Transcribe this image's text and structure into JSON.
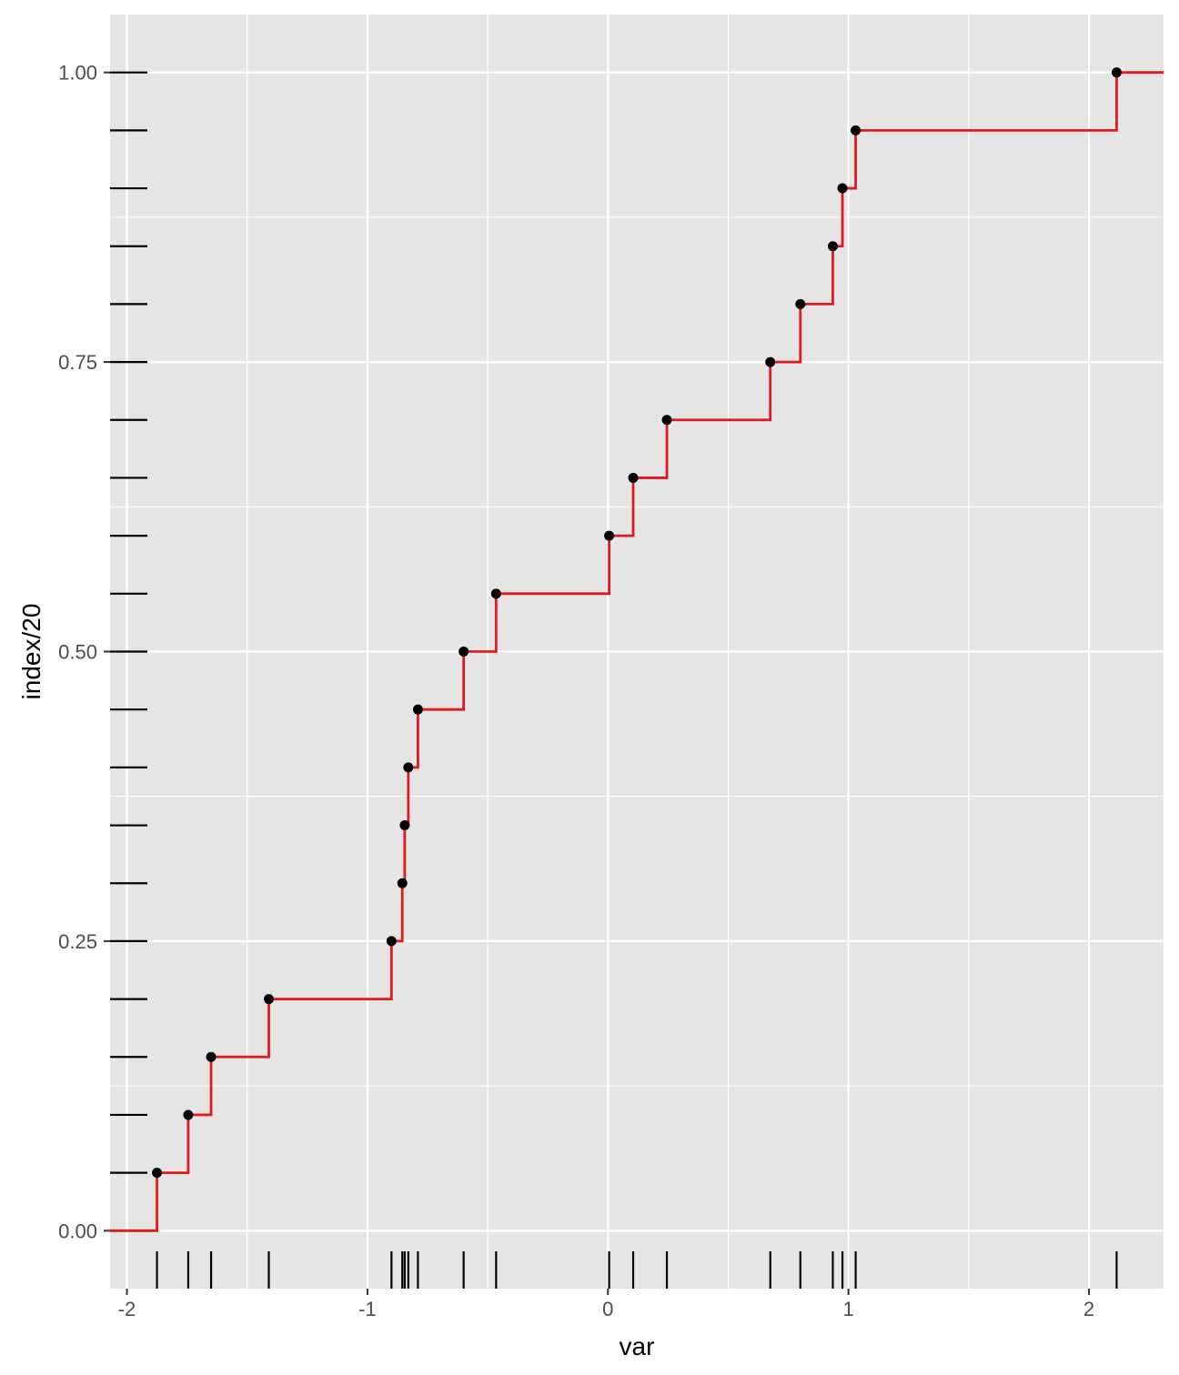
{
  "chart_data": {
    "type": "step",
    "title": "",
    "xlabel": "var",
    "ylabel": "index/20",
    "xlim": [
      -2.07,
      2.31
    ],
    "ylim": [
      -0.05,
      1.05
    ],
    "x_ticks": [
      -2,
      -1,
      0,
      1,
      2
    ],
    "x_tick_labels": [
      "-2",
      "-1",
      "0",
      "1",
      "2"
    ],
    "y_ticks": [
      0,
      0.25,
      0.5,
      0.75,
      1
    ],
    "y_tick_labels": [
      "0.00",
      "0.25",
      "0.50",
      "0.75",
      "1.00"
    ],
    "grid": true,
    "points": {
      "x": [
        -1.875,
        -1.745,
        -1.65,
        -1.41,
        -0.9,
        -0.855,
        -0.845,
        -0.83,
        -0.79,
        -0.6,
        -0.465,
        0.005,
        0.105,
        0.245,
        0.675,
        0.8,
        0.935,
        0.975,
        1.03,
        2.115
      ],
      "y": [
        0.05,
        0.1,
        0.15,
        0.2,
        0.25,
        0.3,
        0.35,
        0.4,
        0.45,
        0.5,
        0.55,
        0.6,
        0.65,
        0.7,
        0.75,
        0.8,
        0.85,
        0.9,
        0.95,
        1.0
      ]
    },
    "step_line": {
      "color": "#e31a1c"
    },
    "rug": {
      "x": "points.x",
      "y": "points.y",
      "color": "#000000"
    },
    "colors": {
      "panel_background": "#e5e5e5",
      "grid": "#ffffff",
      "point": "#000000",
      "step": "#e31a1c",
      "rug": "#000000"
    }
  }
}
